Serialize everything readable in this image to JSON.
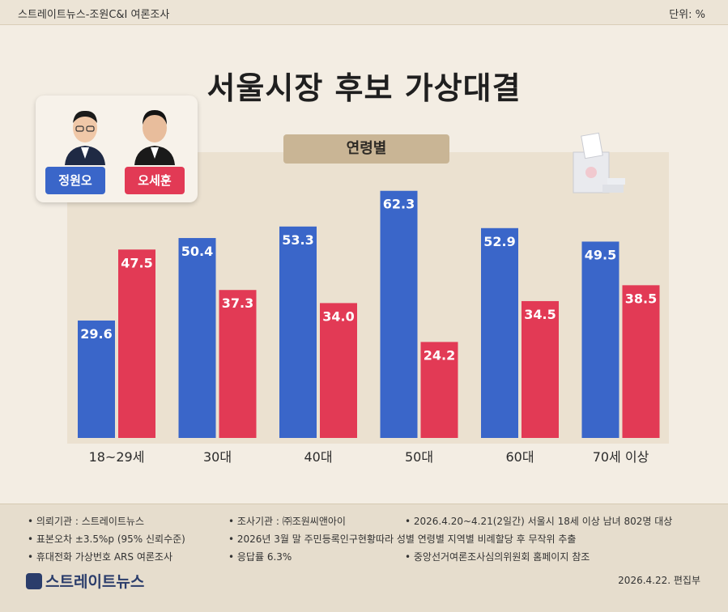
{
  "header": {
    "source": "스트레이트뉴스-조원C&I 여론조사",
    "unit": "단위: %"
  },
  "title": "서울시장 후보 가상대결",
  "subtitle": "연령별",
  "legend": [
    {
      "name": "정원오",
      "color": "#3a66c9"
    },
    {
      "name": "오세훈",
      "color": "#e23a55"
    }
  ],
  "chart_data": {
    "type": "bar",
    "title": "서울시장 후보 가상대결",
    "subtitle": "연령별",
    "categories": [
      "18~29세",
      "30대",
      "40대",
      "50대",
      "60대",
      "70세 이상"
    ],
    "series": [
      {
        "name": "정원오",
        "color": "#3a66c9",
        "values": [
          29.6,
          50.4,
          53.3,
          62.3,
          52.9,
          49.5
        ]
      },
      {
        "name": "오세훈",
        "color": "#e23a55",
        "values": [
          47.5,
          37.3,
          34.0,
          24.2,
          34.5,
          38.5
        ]
      }
    ],
    "ylim": [
      0,
      70
    ],
    "grid": false,
    "legend_position": "top-left"
  },
  "footer": {
    "items": [
      "• 의뢰기관 : 스트레이트뉴스",
      "• 조사기관 : ㈜조원씨앤아이",
      "• 2026.4.20~4.21(2일간) 서울시 18세 이상 남녀 802명 대상",
      "• 표본오차 ±3.5%p (95% 신뢰수준)",
      "• 2026년 3월 말 주민등록인구현황따라 성별 연령별 지역별 비례할당 후 무작위 추출",
      "• 휴대전화 가상번호 ARS 여론조사",
      "• 응답률 6.3%",
      "• 중앙선거여론조사심의위원회 홈페이지 참조"
    ],
    "logo": "스트레이트뉴스",
    "date": "2026.4.22. 편집부"
  }
}
